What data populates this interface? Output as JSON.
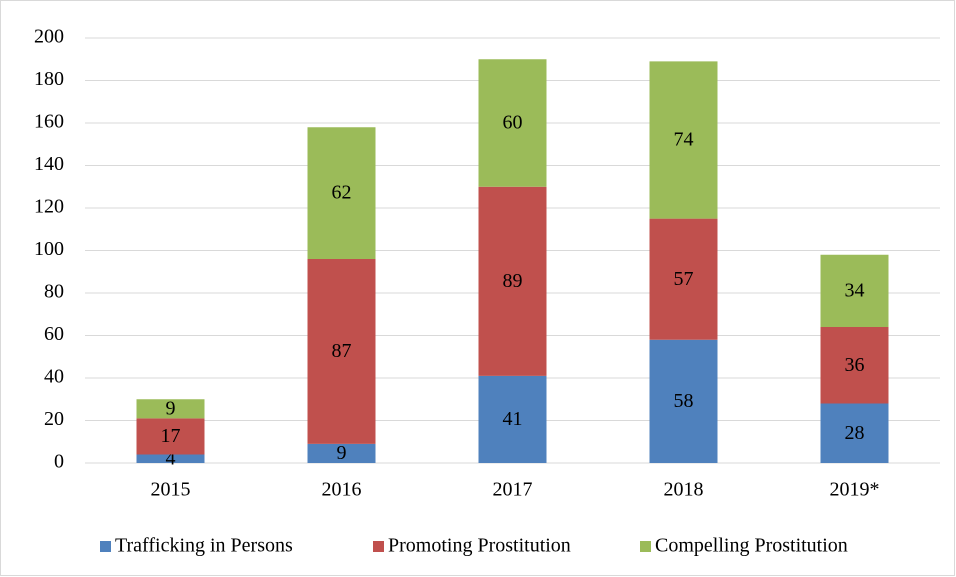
{
  "chart_data": {
    "type": "stacked_bar",
    "categories": [
      "2015",
      "2016",
      "2017",
      "2018",
      "2019*"
    ],
    "series": [
      {
        "name": "Trafficking in Persons",
        "color": "#4f81bd",
        "values": [
          4,
          9,
          41,
          58,
          28
        ]
      },
      {
        "name": "Promoting Prostitution",
        "color": "#c0504d",
        "values": [
          17,
          87,
          89,
          57,
          36
        ]
      },
      {
        "name": "Compelling Prostitution",
        "color": "#9bbb59",
        "values": [
          9,
          62,
          60,
          74,
          34
        ]
      }
    ],
    "ylim": [
      0,
      200
    ],
    "yticks": [
      0,
      20,
      40,
      60,
      80,
      100,
      120,
      140,
      160,
      180,
      200
    ],
    "grid": true,
    "legend": "bottom"
  }
}
